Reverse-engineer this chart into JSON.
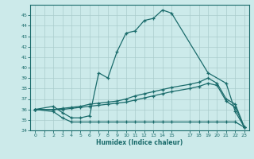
{
  "xlabel": "Humidex (Indice chaleur)",
  "bg_color": "#cceaea",
  "grid_color": "#aacccc",
  "line_color": "#1a6b6b",
  "xlim": [
    -0.5,
    23.5
  ],
  "ylim": [
    34,
    46
  ],
  "xticks": [
    0,
    1,
    2,
    3,
    4,
    5,
    6,
    7,
    8,
    9,
    10,
    11,
    12,
    13,
    14,
    15,
    17,
    18,
    19,
    20,
    21,
    22,
    23
  ],
  "yticks": [
    34,
    35,
    36,
    37,
    38,
    39,
    40,
    41,
    42,
    43,
    44,
    45
  ],
  "line1_x": [
    0,
    2,
    3,
    4,
    5,
    6,
    7,
    8,
    9,
    10,
    11,
    12,
    13,
    14,
    15,
    19,
    21,
    22,
    23
  ],
  "line1_y": [
    36.0,
    36.3,
    35.7,
    35.2,
    35.2,
    35.4,
    39.5,
    39.0,
    41.5,
    43.3,
    43.5,
    44.5,
    44.7,
    45.5,
    45.2,
    39.5,
    38.5,
    35.8,
    34.3
  ],
  "line2_x": [
    0,
    2,
    3,
    4,
    5,
    6,
    7,
    8,
    9,
    10,
    11,
    12,
    13,
    14,
    15,
    17,
    18,
    19,
    20,
    21,
    22,
    23
  ],
  "line2_y": [
    36.0,
    35.8,
    35.2,
    34.8,
    34.8,
    34.8,
    34.8,
    34.8,
    34.8,
    34.8,
    34.8,
    34.8,
    34.8,
    34.8,
    34.8,
    34.8,
    34.8,
    34.8,
    34.8,
    34.8,
    34.8,
    34.3
  ],
  "line3_x": [
    0,
    2,
    3,
    4,
    5,
    6,
    7,
    8,
    9,
    10,
    11,
    12,
    13,
    14,
    15,
    17,
    18,
    19,
    20,
    21,
    22,
    23
  ],
  "line3_y": [
    36.0,
    36.0,
    36.1,
    36.2,
    36.3,
    36.5,
    36.6,
    36.7,
    36.8,
    37.0,
    37.3,
    37.5,
    37.7,
    37.9,
    38.1,
    38.4,
    38.6,
    39.0,
    38.5,
    37.0,
    36.5,
    34.3
  ],
  "line4_x": [
    0,
    2,
    3,
    4,
    5,
    6,
    7,
    8,
    9,
    10,
    11,
    12,
    13,
    14,
    15,
    17,
    18,
    19,
    20,
    21,
    22,
    23
  ],
  "line4_y": [
    36.0,
    36.0,
    36.0,
    36.1,
    36.2,
    36.3,
    36.4,
    36.5,
    36.6,
    36.7,
    36.9,
    37.1,
    37.3,
    37.5,
    37.7,
    38.0,
    38.2,
    38.5,
    38.3,
    36.8,
    36.2,
    34.3
  ]
}
